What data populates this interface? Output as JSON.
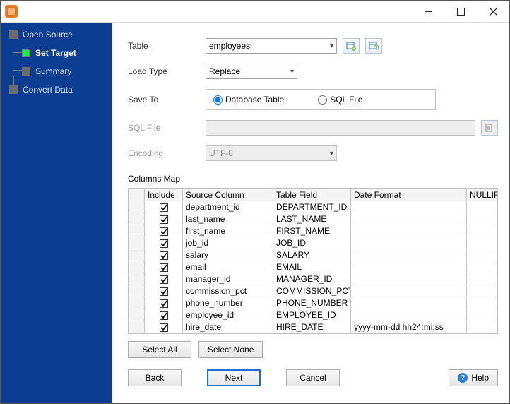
{
  "sidebar": {
    "steps": [
      {
        "label": "Open Source",
        "current": false
      },
      {
        "label": "Set Target",
        "current": true,
        "sub": true
      },
      {
        "label": "Summary",
        "current": false,
        "sub": true
      },
      {
        "label": "Convert Data",
        "current": false
      }
    ]
  },
  "form": {
    "table_label": "Table",
    "table_value": "employees",
    "load_type_label": "Load Type",
    "load_type_value": "Replace",
    "save_to_label": "Save To",
    "save_to_options": {
      "db": "Database Table",
      "sql": "SQL File"
    },
    "save_to_selected": "db",
    "sql_file_label": "SQL File",
    "sql_file_value": "",
    "encoding_label": "Encoding",
    "encoding_value": "UTF-8",
    "columns_map_label": "Columns Map"
  },
  "grid": {
    "headers": {
      "include": "Include",
      "source": "Source Column",
      "field": "Table Field",
      "date": "Date Format",
      "nullif": "NULLIF"
    },
    "rows": [
      {
        "source": "department_id",
        "field": "DEPARTMENT_ID",
        "date": "",
        "nullif": ""
      },
      {
        "source": "last_name",
        "field": "LAST_NAME",
        "date": "",
        "nullif": ""
      },
      {
        "source": "first_name",
        "field": "FIRST_NAME",
        "date": "",
        "nullif": ""
      },
      {
        "source": "job_id",
        "field": "JOB_ID",
        "date": "",
        "nullif": ""
      },
      {
        "source": "salary",
        "field": "SALARY",
        "date": "",
        "nullif": ""
      },
      {
        "source": "email",
        "field": "EMAIL",
        "date": "",
        "nullif": ""
      },
      {
        "source": "manager_id",
        "field": "MANAGER_ID",
        "date": "",
        "nullif": ""
      },
      {
        "source": "commission_pct",
        "field": "COMMISSION_PCT",
        "date": "",
        "nullif": ""
      },
      {
        "source": "phone_number",
        "field": "PHONE_NUMBER",
        "date": "",
        "nullif": ""
      },
      {
        "source": "employee_id",
        "field": "EMPLOYEE_ID",
        "date": "",
        "nullif": ""
      },
      {
        "source": "hire_date",
        "field": "HIRE_DATE",
        "date": "yyyy-mm-dd hh24:mi:ss",
        "nullif": ""
      }
    ]
  },
  "buttons": {
    "select_all": "Select All",
    "select_none": "Select None",
    "back": "Back",
    "next": "Next",
    "cancel": "Cancel",
    "help": "Help"
  },
  "colors": {
    "sidebar_bg": "#0b3d91",
    "accent": "#1a6fd6",
    "active_node": "#00ff3c"
  }
}
